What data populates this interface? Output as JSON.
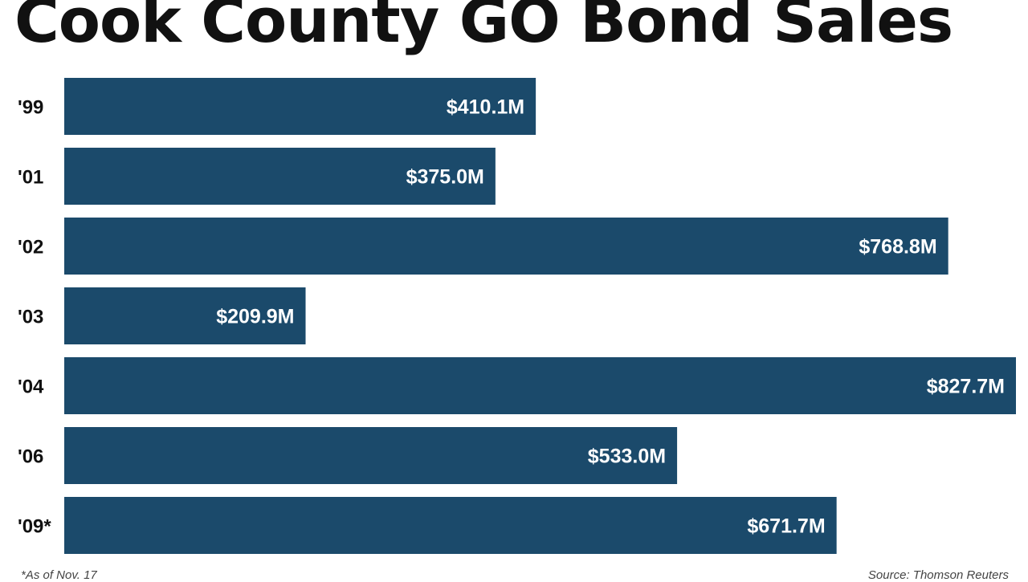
{
  "chart_data": {
    "type": "bar",
    "orientation": "horizontal",
    "title": "Cook County GO Bond Sales",
    "categories": [
      "'99",
      "'01",
      "'02",
      "'03",
      "'04",
      "'06",
      "'09*"
    ],
    "values": [
      410.1,
      375.0,
      768.8,
      209.9,
      827.7,
      533.0,
      671.7
    ],
    "value_labels": [
      "$410.1M",
      "$375.0M",
      "$768.8M",
      "$209.9M",
      "$827.7M",
      "$533.0M",
      "$671.7M"
    ],
    "unit": "$M",
    "xlabel": "",
    "ylabel": "",
    "xlim": [
      0,
      827.7
    ],
    "grid": false,
    "bar_color": "#1b4a6b"
  },
  "footnotes": {
    "left": "*As of Nov. 17",
    "right": "Source: Thomson Reuters"
  }
}
